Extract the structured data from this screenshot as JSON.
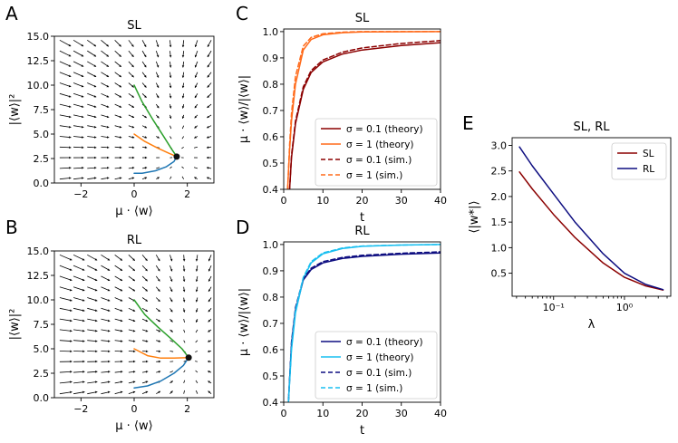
{
  "panels": {
    "A": "A",
    "B": "B",
    "C": "C",
    "D": "D",
    "E": "E"
  },
  "colors": {
    "blue": "#1f77b4",
    "orange": "#ff7f0e",
    "green": "#2ca02c",
    "darkred": "#8b0000",
    "lightorange": "#ff6a1a",
    "navy": "#0d0d80",
    "cyan": "#19bff0",
    "black": "#000000"
  },
  "chart_data": [
    {
      "id": "A",
      "type": "line",
      "title": "SL",
      "xlabel": "μ · ⟨w⟩",
      "ylabel": "|⟨w⟩|²",
      "xlim": [
        -3,
        3
      ],
      "ylim": [
        0,
        15
      ],
      "xticks": [
        -2,
        0,
        2
      ],
      "yticks": [
        0.0,
        2.5,
        5.0,
        7.5,
        10.0,
        12.5,
        15.0
      ],
      "xtick_labels": [
        "−2",
        "0",
        "2"
      ],
      "ytick_labels": [
        "0.0",
        "2.5",
        "5.0",
        "7.5",
        "10.0",
        "12.5",
        "15.0"
      ],
      "fixed_point": [
        1.6,
        2.7
      ],
      "quiver": "vector field arrows pointing toward the fixed point",
      "series": [
        {
          "name": "trajectory from (0,1)",
          "color": "blue",
          "x": [
            0,
            0.3,
            0.8,
            1.2,
            1.5,
            1.6
          ],
          "y": [
            1.0,
            1.0,
            1.25,
            1.65,
            2.2,
            2.7
          ]
        },
        {
          "name": "trajectory from (0,5)",
          "color": "orange",
          "x": [
            0,
            0.4,
            0.9,
            1.3,
            1.6
          ],
          "y": [
            5.0,
            4.25,
            3.55,
            3.05,
            2.7
          ]
        },
        {
          "name": "trajectory from (0,10)",
          "color": "green",
          "x": [
            0,
            0.3,
            0.7,
            1.1,
            1.4,
            1.6
          ],
          "y": [
            10.0,
            8.3,
            6.5,
            4.8,
            3.5,
            2.7
          ]
        }
      ]
    },
    {
      "id": "B",
      "type": "line",
      "title": "RL",
      "xlabel": "μ · ⟨w⟩",
      "ylabel": "|⟨w⟩|²",
      "xlim": [
        -3,
        3
      ],
      "ylim": [
        0,
        15
      ],
      "xticks": [
        -2,
        0,
        2
      ],
      "yticks": [
        0.0,
        2.5,
        5.0,
        7.5,
        10.0,
        12.5,
        15.0
      ],
      "xtick_labels": [
        "−2",
        "0",
        "2"
      ],
      "ytick_labels": [
        "0.0",
        "2.5",
        "5.0",
        "7.5",
        "10.0",
        "12.5",
        "15.0"
      ],
      "fixed_point": [
        2.05,
        4.1
      ],
      "quiver": "vector field arrows pointing toward the fixed point",
      "series": [
        {
          "name": "trajectory from (0,1)",
          "color": "blue",
          "x": [
            0,
            0.5,
            1.0,
            1.5,
            1.85,
            2.05
          ],
          "y": [
            1.0,
            1.2,
            1.7,
            2.5,
            3.3,
            4.1
          ]
        },
        {
          "name": "trajectory from (0,5)",
          "color": "orange",
          "x": [
            0,
            0.5,
            1.0,
            1.5,
            2.05
          ],
          "y": [
            5.0,
            4.3,
            4.05,
            4.05,
            4.1
          ]
        },
        {
          "name": "trajectory from (0,10)",
          "color": "green",
          "x": [
            0,
            0.4,
            0.9,
            1.4,
            1.8,
            2.05
          ],
          "y": [
            10.0,
            8.5,
            7.2,
            6.0,
            5.0,
            4.1
          ]
        }
      ]
    },
    {
      "id": "C",
      "type": "line",
      "title": "SL",
      "xlabel": "t",
      "ylabel": "μ · ⟨w⟩/|⟨w⟩|",
      "xlim": [
        0,
        40
      ],
      "ylim": [
        0.4,
        1.01
      ],
      "xticks": [
        0,
        10,
        20,
        30,
        40
      ],
      "yticks": [
        0.4,
        0.5,
        0.6,
        0.7,
        0.8,
        0.9,
        1.0
      ],
      "xtick_labels": [
        "0",
        "10",
        "20",
        "30",
        "40"
      ],
      "ytick_labels": [
        "0.4",
        "0.5",
        "0.6",
        "0.7",
        "0.8",
        "0.9",
        "1.0"
      ],
      "legend": "bottom-right",
      "series": [
        {
          "name": "σ = 0.1 (theory)",
          "color": "darkred",
          "dash": false,
          "x": [
            1.5,
            2,
            3,
            5,
            7,
            10,
            15,
            20,
            30,
            40
          ],
          "y": [
            0.4,
            0.52,
            0.65,
            0.78,
            0.845,
            0.885,
            0.915,
            0.93,
            0.947,
            0.958
          ]
        },
        {
          "name": "σ = 1 (theory)",
          "color": "lightorange",
          "dash": false,
          "x": [
            1,
            1.5,
            2,
            3,
            5,
            7,
            10,
            15,
            20,
            40
          ],
          "y": [
            0.4,
            0.55,
            0.66,
            0.8,
            0.93,
            0.97,
            0.988,
            0.996,
            0.999,
            1.0
          ]
        },
        {
          "name": "σ = 0.1 (sim.)",
          "color": "darkred",
          "dash": true,
          "x": [
            1.5,
            2,
            3,
            5,
            7,
            10,
            15,
            20,
            30,
            40
          ],
          "y": [
            0.4,
            0.53,
            0.66,
            0.79,
            0.852,
            0.892,
            0.922,
            0.938,
            0.955,
            0.966
          ]
        },
        {
          "name": "σ = 1 (sim.)",
          "color": "lightorange",
          "dash": true,
          "x": [
            1,
            1.5,
            2,
            3,
            5,
            7,
            10,
            15,
            20,
            40
          ],
          "y": [
            0.4,
            0.57,
            0.69,
            0.83,
            0.945,
            0.978,
            0.992,
            0.998,
            1.0,
            1.0
          ]
        }
      ]
    },
    {
      "id": "D",
      "type": "line",
      "title": "RL",
      "xlabel": "t",
      "ylabel": "μ · ⟨w⟩/|⟨w⟩|",
      "xlim": [
        0,
        40
      ],
      "ylim": [
        0.4,
        1.01
      ],
      "xticks": [
        0,
        10,
        20,
        30,
        40
      ],
      "yticks": [
        0.4,
        0.5,
        0.6,
        0.7,
        0.8,
        0.9,
        1.0
      ],
      "xtick_labels": [
        "0",
        "10",
        "20",
        "30",
        "40"
      ],
      "ytick_labels": [
        "0.4",
        "0.5",
        "0.6",
        "0.7",
        "0.8",
        "0.9",
        "1.0"
      ],
      "legend": "bottom-right",
      "series": [
        {
          "name": "σ = 0.1 (theory)",
          "color": "navy",
          "dash": false,
          "x": [
            1.2,
            2,
            3,
            5,
            7,
            10,
            15,
            20,
            30,
            40
          ],
          "y": [
            0.4,
            0.62,
            0.75,
            0.865,
            0.905,
            0.93,
            0.947,
            0.955,
            0.963,
            0.968
          ]
        },
        {
          "name": "σ = 1 (theory)",
          "color": "cyan",
          "dash": false,
          "x": [
            1.2,
            2,
            3,
            5,
            7,
            10,
            15,
            20,
            30,
            40
          ],
          "y": [
            0.4,
            0.6,
            0.74,
            0.87,
            0.93,
            0.965,
            0.985,
            0.993,
            0.998,
            1.0
          ]
        },
        {
          "name": "σ = 0.1 (sim.)",
          "color": "navy",
          "dash": true,
          "x": [
            1.2,
            2,
            3,
            5,
            7,
            10,
            15,
            20,
            30,
            40
          ],
          "y": [
            0.4,
            0.63,
            0.76,
            0.87,
            0.91,
            0.935,
            0.951,
            0.959,
            0.967,
            0.972
          ]
        },
        {
          "name": "σ = 1 (sim.)",
          "color": "cyan",
          "dash": true,
          "x": [
            1.2,
            2,
            3,
            5,
            7,
            10,
            15,
            20,
            30,
            40
          ],
          "y": [
            0.4,
            0.61,
            0.75,
            0.875,
            0.935,
            0.968,
            0.987,
            0.994,
            0.998,
            1.0
          ]
        }
      ]
    },
    {
      "id": "E",
      "type": "line",
      "title": "SL, RL",
      "xlabel": "λ",
      "ylabel": "⟨|w*|⟩",
      "xscale": "log",
      "xlim": [
        0.026,
        4.5
      ],
      "ylim": [
        0.05,
        3.15
      ],
      "xticks": [
        0.1,
        1.0
      ],
      "xtick_labels": [
        "10⁻¹",
        "10⁰"
      ],
      "yticks": [
        0.5,
        1.0,
        1.5,
        2.0,
        2.5,
        3.0
      ],
      "ytick_labels": [
        "0.5",
        "1.0",
        "1.5",
        "2.0",
        "2.5",
        "3.0"
      ],
      "legend": "top-right",
      "series": [
        {
          "name": "SL",
          "color": "darkred",
          "x": [
            0.033,
            0.05,
            0.1,
            0.2,
            0.5,
            1.0,
            2.0,
            3.5
          ],
          "y": [
            2.48,
            2.15,
            1.65,
            1.2,
            0.7,
            0.42,
            0.25,
            0.17
          ]
        },
        {
          "name": "RL",
          "color": "navy",
          "x": [
            0.033,
            0.05,
            0.1,
            0.2,
            0.5,
            1.0,
            2.0,
            3.5
          ],
          "y": [
            2.97,
            2.6,
            2.05,
            1.5,
            0.88,
            0.5,
            0.28,
            0.18
          ]
        }
      ]
    }
  ]
}
